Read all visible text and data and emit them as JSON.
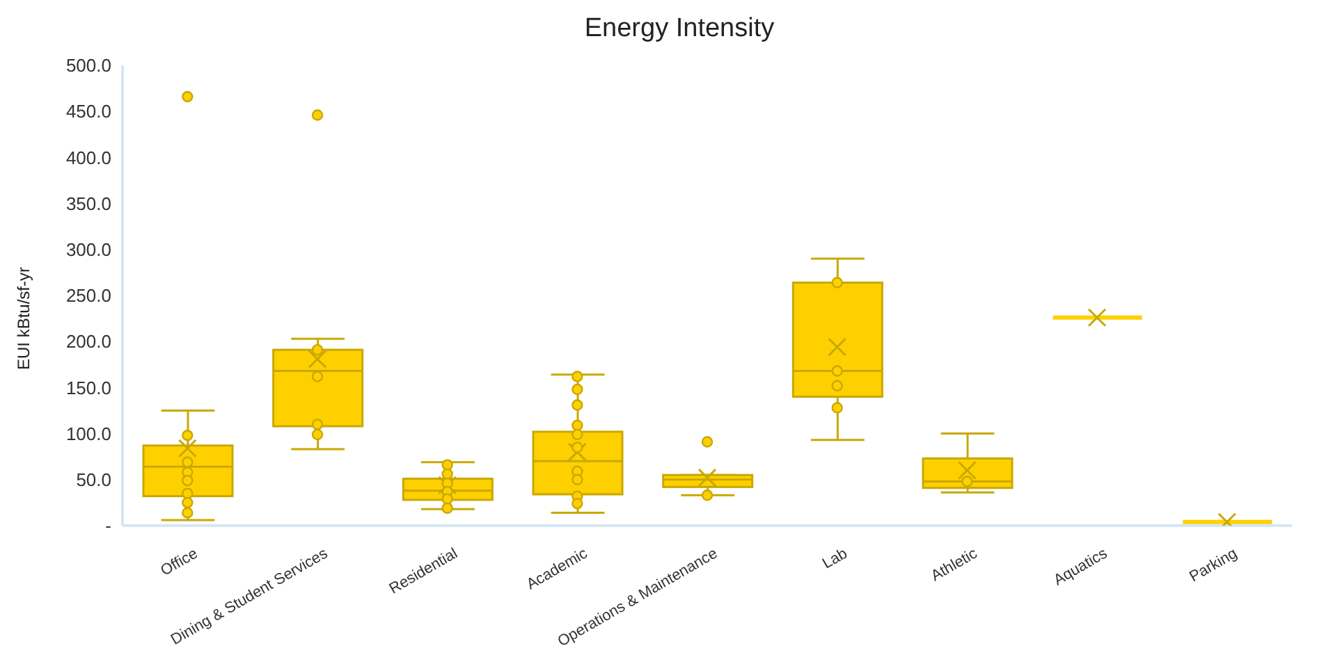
{
  "chart_data": {
    "type": "box",
    "title": "Energy Intensity",
    "ylabel": "EUI kBtu/sf-yr",
    "categories": [
      "Office",
      "Dining & Student Services",
      "Residential",
      "Academic",
      "Operations & Maintenance",
      "Lab",
      "Athletic",
      "Aquatics",
      "Parking"
    ],
    "ylim": [
      0,
      500
    ],
    "yticks": [
      {
        "value": 0,
        "label": "-"
      },
      {
        "value": 50,
        "label": "50.0"
      },
      {
        "value": 100,
        "label": "100.0"
      },
      {
        "value": 150,
        "label": "150.0"
      },
      {
        "value": 200,
        "label": "200.0"
      },
      {
        "value": 250,
        "label": "250.0"
      },
      {
        "value": 300,
        "label": "300.0"
      },
      {
        "value": 350,
        "label": "350.0"
      },
      {
        "value": 400,
        "label": "400.0"
      },
      {
        "value": 450,
        "label": "450.0"
      },
      {
        "value": 500,
        "label": "500.0"
      }
    ],
    "grid": false,
    "legend": false,
    "series": [
      {
        "color": "#ffd000",
        "boxes": [
          {
            "low": 6,
            "q1": 32,
            "median": 64,
            "q3": 87,
            "high": 125,
            "mean": 84,
            "outliers": [
              466
            ]
          },
          {
            "low": 83,
            "q1": 108,
            "median": 168,
            "q3": 191,
            "high": 203,
            "mean": 181,
            "outliers": [
              446
            ]
          },
          {
            "low": 18,
            "q1": 28,
            "median": 38,
            "q3": 51,
            "high": 69,
            "mean": 44
          },
          {
            "low": 14,
            "q1": 34,
            "median": 70,
            "q3": 102,
            "high": 164,
            "mean": 80
          },
          {
            "low": 33,
            "q1": 42,
            "median": 50,
            "q3": 55,
            "high": 55,
            "mean": 52,
            "outliers": [
              91
            ]
          },
          {
            "low": 93,
            "q1": 140,
            "median": 168,
            "q3": 264,
            "high": 290,
            "mean": 194
          },
          {
            "low": 36,
            "q1": 41,
            "median": 48,
            "q3": 73,
            "high": 100,
            "mean": 60
          },
          {
            "low": 226,
            "q1": 226,
            "median": 226,
            "q3": 226,
            "high": 226,
            "mean": 226
          },
          {
            "low": 4,
            "q1": 4,
            "median": 4,
            "q3": 4,
            "high": 4,
            "mean": 4
          }
        ]
      },
      {
        "type": "scatter",
        "color": "#ffd000",
        "marker": "circle",
        "x": [
          "Office",
          "Office",
          "Office",
          "Office",
          "Office",
          "Office",
          "Office",
          "Dining & Student Services",
          "Dining & Student Services",
          "Dining & Student Services",
          "Dining & Student Services",
          "Residential",
          "Residential",
          "Residential",
          "Residential",
          "Residential",
          "Residential",
          "Academic",
          "Academic",
          "Academic",
          "Academic",
          "Academic",
          "Academic",
          "Academic",
          "Academic",
          "Academic",
          "Academic",
          "Operations & Maintenance",
          "Lab",
          "Lab",
          "Lab",
          "Lab",
          "Athletic"
        ],
        "values": [
          98,
          69,
          58,
          49,
          35,
          25,
          14,
          191,
          162,
          110,
          99,
          66,
          56,
          46,
          37,
          29,
          19,
          162,
          148,
          131,
          109,
          99,
          85,
          59,
          50,
          32,
          24,
          33,
          264,
          168,
          152,
          128,
          48
        ]
      }
    ]
  }
}
